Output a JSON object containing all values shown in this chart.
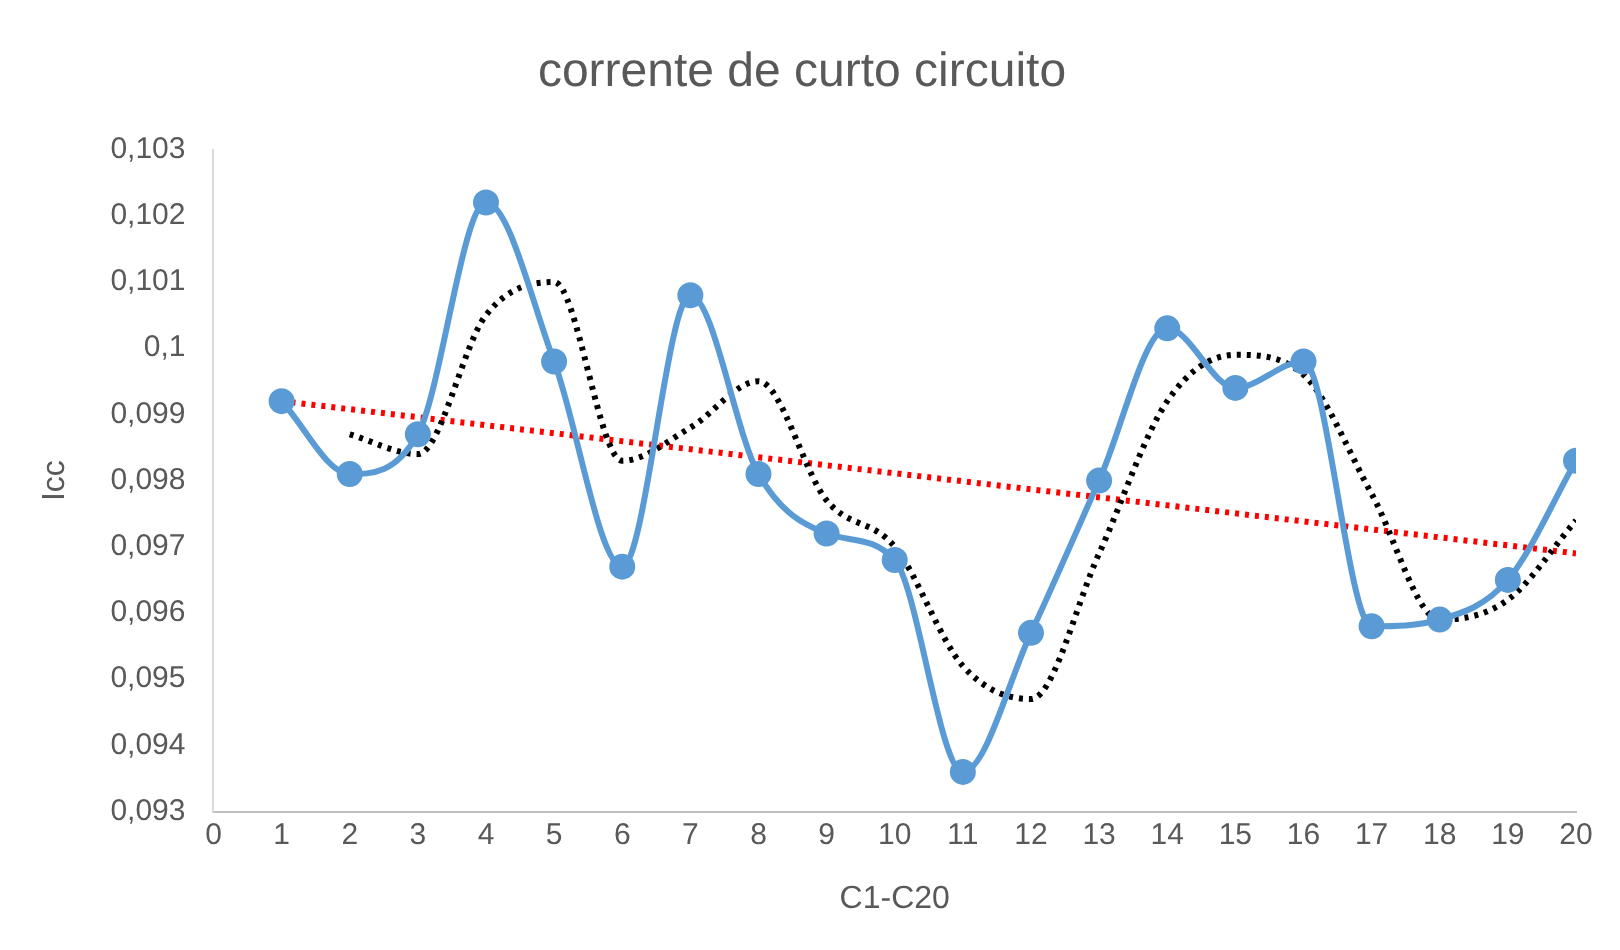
{
  "chart_data": {
    "type": "line",
    "title": "corrente de curto circuito",
    "xlabel": "C1-C20",
    "ylabel": "Icc",
    "xlim": [
      0,
      20
    ],
    "xticks": [
      0,
      1,
      2,
      3,
      4,
      5,
      6,
      7,
      8,
      9,
      10,
      11,
      12,
      13,
      14,
      15,
      16,
      17,
      18,
      19,
      20
    ],
    "ylim": [
      0.093,
      0.103
    ],
    "yticks": [
      {
        "value": 0.093,
        "label": "0,093"
      },
      {
        "value": 0.094,
        "label": "0,094"
      },
      {
        "value": 0.095,
        "label": "0,095"
      },
      {
        "value": 0.096,
        "label": "0,096"
      },
      {
        "value": 0.097,
        "label": "0,097"
      },
      {
        "value": 0.098,
        "label": "0,098"
      },
      {
        "value": 0.099,
        "label": "0,099"
      },
      {
        "value": 0.1,
        "label": "0,1"
      },
      {
        "value": 0.101,
        "label": "0,101"
      },
      {
        "value": 0.102,
        "label": "0,102"
      },
      {
        "value": 0.103,
        "label": "0,103"
      }
    ],
    "grid": false,
    "legend": false,
    "series": [
      {
        "color": "#5b9bd5",
        "marker": "circle",
        "line_style": "solid",
        "x": [
          1,
          2,
          3,
          4,
          5,
          6,
          7,
          8,
          9,
          10,
          11,
          12,
          13,
          14,
          15,
          16,
          17,
          18,
          19,
          20
        ],
        "values": [
          0.0992,
          0.0981,
          0.0987,
          0.1022,
          0.0998,
          0.0967,
          0.1008,
          0.0981,
          0.0972,
          0.0968,
          0.0936,
          0.0957,
          0.098,
          0.1003,
          0.0994,
          0.0998,
          0.0958,
          0.0959,
          0.0965,
          0.0983
        ]
      },
      {
        "color": "#000000",
        "marker": "none",
        "line_style": "dotted",
        "x": [
          2,
          3,
          4,
          5,
          6,
          7,
          8,
          9,
          10,
          11,
          12,
          13,
          14,
          15,
          16,
          17,
          18,
          19,
          20
        ],
        "values": [
          0.0987,
          0.0984,
          0.1005,
          0.101,
          0.0983,
          0.0988,
          0.0995,
          0.0977,
          0.097,
          0.0952,
          0.0947,
          0.0969,
          0.0992,
          0.0999,
          0.0996,
          0.0978,
          0.0959,
          0.0962,
          0.0974
        ]
      },
      {
        "color": "#ff0000",
        "marker": "none",
        "line_style": "dotted",
        "x": [
          1,
          20
        ],
        "values": [
          0.0992,
          0.0969
        ]
      }
    ]
  }
}
